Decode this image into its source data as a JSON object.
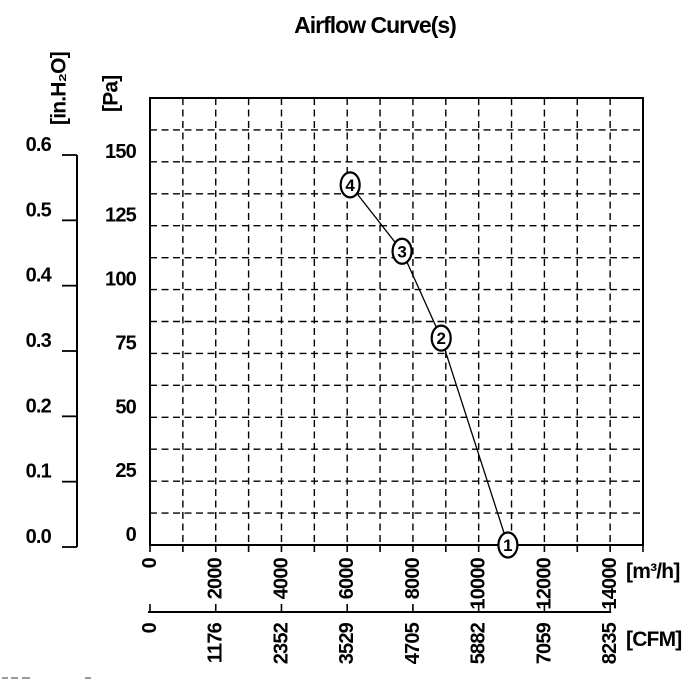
{
  "page": {
    "background": "#ffffff",
    "ink": "#000000"
  },
  "chart_data": {
    "type": "line",
    "title": "Airflow Curve(s)",
    "grid": {
      "style": "dashed",
      "x_range_m3h": [
        0,
        15000
      ],
      "x_gridline_step_m3h": 1000,
      "y_range_pa": [
        0,
        175
      ],
      "y_gridline_step_pa": 12.5
    },
    "x_axes": [
      {
        "id": "m3h",
        "unit_label": "[m³/h]",
        "tick_values": [
          0,
          2000,
          4000,
          6000,
          8000,
          10000,
          12000,
          14000
        ],
        "tick_label_rotation_deg": -90
      },
      {
        "id": "cfm",
        "unit_label": "[CFM]",
        "tick_values": [
          0,
          1176,
          2352,
          3529,
          4705,
          5882,
          7059,
          8235
        ],
        "aligned_m3h_values": [
          0,
          2000,
          4000,
          6000,
          8000,
          10000,
          12000,
          14000
        ],
        "tick_label_rotation_deg": -90
      }
    ],
    "y_axes": [
      {
        "id": "pa",
        "unit_label": "[Pa]",
        "tick_values": [
          0,
          25,
          50,
          75,
          100,
          125,
          150
        ]
      },
      {
        "id": "inh2o",
        "unit_label": "[in.H₂O]",
        "tick_labels": [
          "0.0",
          "0.1",
          "0.2",
          "0.3",
          "0.4",
          "0.5",
          "0.6"
        ],
        "range": [
          0,
          0.6
        ]
      }
    ],
    "series": [
      {
        "name": "airflow-curve",
        "marker": "circled-number",
        "points": [
          {
            "label": "1",
            "m3h": 10890,
            "pa": 0
          },
          {
            "label": "2",
            "m3h": 8860,
            "pa": 81
          },
          {
            "label": "3",
            "m3h": 7670,
            "pa": 115
          },
          {
            "label": "4",
            "m3h": 6090,
            "pa": 141
          }
        ]
      }
    ],
    "legend": null
  }
}
